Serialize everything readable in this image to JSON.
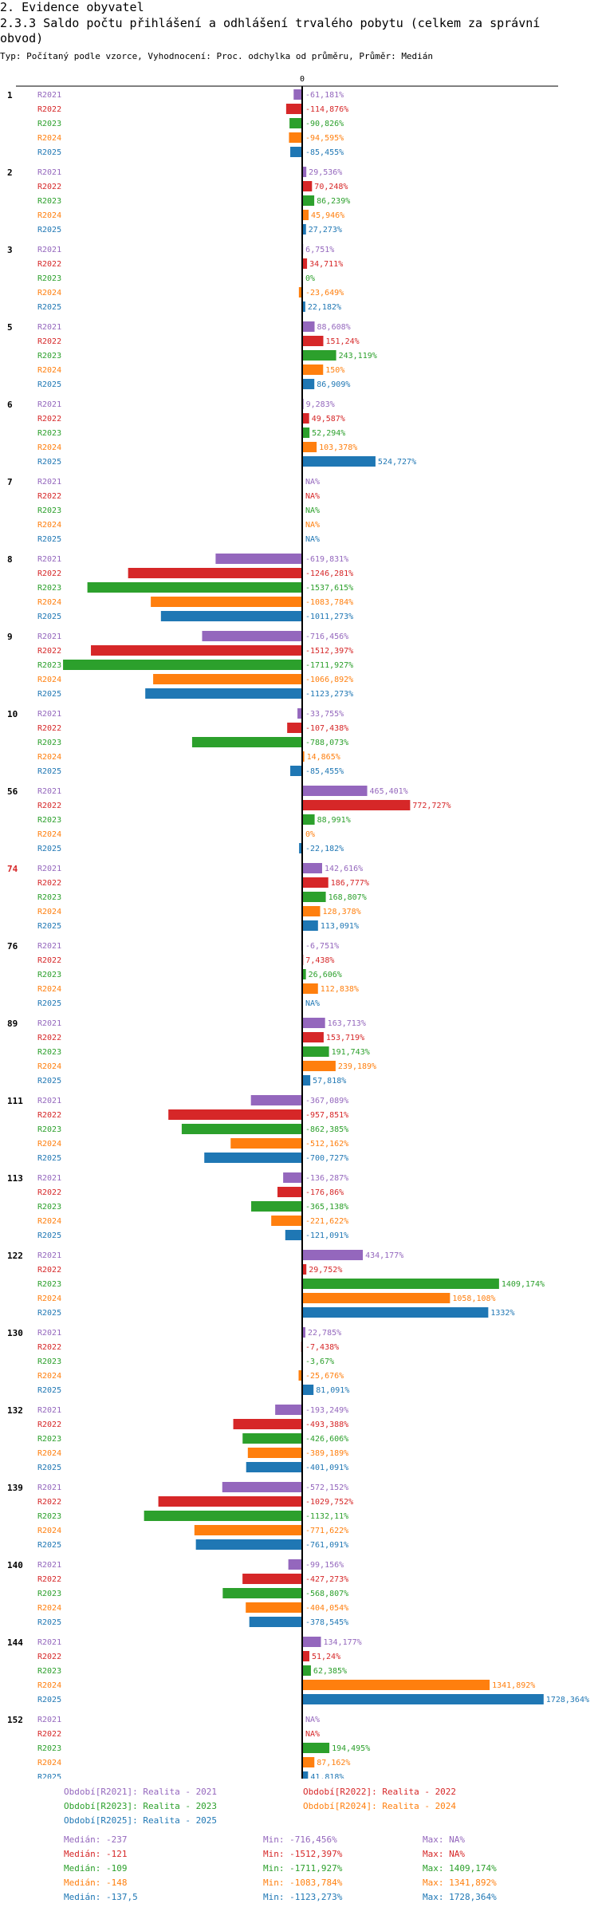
{
  "header": {
    "section": "2. Evidence obyvatel",
    "title": "2.3.3 Saldo počtu přihlášení a odhlášení trvalého pobytu (celkem za správní obvod)",
    "subtitle": "Typ: Počítaný podle vzorce, Vyhodnocení: Proc. odchylka od průměru, Průměr: Medián"
  },
  "chart_data": {
    "type": "bar",
    "orientation": "horizontal",
    "zero_label": "0",
    "series": [
      {
        "name": "R2021",
        "color": "#9467bd"
      },
      {
        "name": "R2022",
        "color": "#d62728"
      },
      {
        "name": "R2023",
        "color": "#2ca02c"
      },
      {
        "name": "R2024",
        "color": "#ff7f0e"
      },
      {
        "name": "R2025",
        "color": "#1f77b4"
      }
    ],
    "groups": [
      {
        "id": "1",
        "highlight": false,
        "values": [
          -61.181,
          -114.876,
          -90.826,
          -94.595,
          -85.455
        ],
        "labels": [
          "-61,181%",
          "-114,876%",
          "-90,826%",
          "-94,595%",
          "-85,455%"
        ]
      },
      {
        "id": "2",
        "highlight": false,
        "values": [
          29.536,
          70.248,
          86.239,
          45.946,
          27.273
        ],
        "labels": [
          "29,536%",
          "70,248%",
          "86,239%",
          "45,946%",
          "27,273%"
        ]
      },
      {
        "id": "3",
        "highlight": false,
        "values": [
          6.751,
          34.711,
          0,
          -23.649,
          22.182
        ],
        "labels": [
          "6,751%",
          "34,711%",
          "0%",
          "-23,649%",
          "22,182%"
        ]
      },
      {
        "id": "5",
        "highlight": false,
        "values": [
          88.608,
          151.24,
          243.119,
          150,
          86.909
        ],
        "labels": [
          "88,608%",
          "151,24%",
          "243,119%",
          "150%",
          "86,909%"
        ]
      },
      {
        "id": "6",
        "highlight": false,
        "values": [
          9.283,
          49.587,
          52.294,
          103.378,
          524.727
        ],
        "labels": [
          "9,283%",
          "49,587%",
          "52,294%",
          "103,378%",
          "524,727%"
        ]
      },
      {
        "id": "7",
        "highlight": false,
        "values": [
          null,
          null,
          null,
          null,
          null
        ],
        "labels": [
          "NA%",
          "NA%",
          "NA%",
          "NA%",
          "NA%"
        ]
      },
      {
        "id": "8",
        "highlight": false,
        "values": [
          -619.831,
          -1246.281,
          -1537.615,
          -1083.784,
          -1011.273
        ],
        "labels": [
          "-619,831%",
          "-1246,281%",
          "-1537,615%",
          "-1083,784%",
          "-1011,273%"
        ]
      },
      {
        "id": "9",
        "highlight": false,
        "values": [
          -716.456,
          -1512.397,
          -1711.927,
          -1066.892,
          -1123.273
        ],
        "labels": [
          "-716,456%",
          "-1512,397%",
          "-1711,927%",
          "-1066,892%",
          "-1123,273%"
        ]
      },
      {
        "id": "10",
        "highlight": false,
        "values": [
          -33.755,
          -107.438,
          -788.073,
          14.865,
          -85.455
        ],
        "labels": [
          "-33,755%",
          "-107,438%",
          "-788,073%",
          "14,865%",
          "-85,455%"
        ]
      },
      {
        "id": "56",
        "highlight": false,
        "values": [
          465.401,
          772.727,
          88.991,
          0,
          -22.182
        ],
        "labels": [
          "465,401%",
          "772,727%",
          "88,991%",
          "0%",
          "-22,182%"
        ]
      },
      {
        "id": "74",
        "highlight": true,
        "values": [
          142.616,
          186.777,
          168.807,
          128.378,
          113.091
        ],
        "labels": [
          "142,616%",
          "186,777%",
          "168,807%",
          "128,378%",
          "113,091%"
        ]
      },
      {
        "id": "76",
        "highlight": false,
        "values": [
          -6.751,
          7.438,
          26.606,
          112.838,
          null
        ],
        "labels": [
          "-6,751%",
          "7,438%",
          "26,606%",
          "112,838%",
          "NA%"
        ]
      },
      {
        "id": "89",
        "highlight": false,
        "values": [
          163.713,
          153.719,
          191.743,
          239.189,
          57.818
        ],
        "labels": [
          "163,713%",
          "153,719%",
          "191,743%",
          "239,189%",
          "57,818%"
        ]
      },
      {
        "id": "111",
        "highlight": false,
        "values": [
          -367.089,
          -957.851,
          -862.385,
          -512.162,
          -700.727
        ],
        "labels": [
          "-367,089%",
          "-957,851%",
          "-862,385%",
          "-512,162%",
          "-700,727%"
        ]
      },
      {
        "id": "113",
        "highlight": false,
        "values": [
          -136.287,
          -176.86,
          -365.138,
          -221.622,
          -121.091
        ],
        "labels": [
          "-136,287%",
          "-176,86%",
          "-365,138%",
          "-221,622%",
          "-121,091%"
        ]
      },
      {
        "id": "122",
        "highlight": false,
        "values": [
          434.177,
          29.752,
          1409.174,
          1058.108,
          1332
        ],
        "labels": [
          "434,177%",
          "29,752%",
          "1409,174%",
          "1058,108%",
          "1332%"
        ]
      },
      {
        "id": "130",
        "highlight": false,
        "values": [
          22.785,
          -7.438,
          -3.67,
          -25.676,
          81.091
        ],
        "labels": [
          "22,785%",
          "-7,438%",
          "-3,67%",
          "-25,676%",
          "81,091%"
        ]
      },
      {
        "id": "132",
        "highlight": false,
        "values": [
          -193.249,
          -493.388,
          -426.606,
          -389.189,
          -401.091
        ],
        "labels": [
          "-193,249%",
          "-493,388%",
          "-426,606%",
          "-389,189%",
          "-401,091%"
        ]
      },
      {
        "id": "139",
        "highlight": false,
        "values": [
          -572.152,
          -1029.752,
          -1132.11,
          -771.622,
          -761.091
        ],
        "labels": [
          "-572,152%",
          "-1029,752%",
          "-1132,11%",
          "-771,622%",
          "-761,091%"
        ]
      },
      {
        "id": "140",
        "highlight": false,
        "values": [
          -99.156,
          -427.273,
          -568.807,
          -404.054,
          -378.545
        ],
        "labels": [
          "-99,156%",
          "-427,273%",
          "-568,807%",
          "-404,054%",
          "-378,545%"
        ]
      },
      {
        "id": "144",
        "highlight": false,
        "values": [
          134.177,
          51.24,
          62.385,
          1341.892,
          1728.364
        ],
        "labels": [
          "134,177%",
          "51,24%",
          "62,385%",
          "1341,892%",
          "1728,364%"
        ]
      },
      {
        "id": "152",
        "highlight": false,
        "values": [
          null,
          null,
          194.495,
          87.162,
          41.818
        ],
        "labels": [
          "NA%",
          "NA%",
          "194,495%",
          "87,162%",
          "41,818%"
        ]
      }
    ]
  },
  "legend": {
    "periods": [
      "Období[R2021]: Realita - 2021",
      "Období[R2022]: Realita - 2022",
      "Období[R2023]: Realita - 2023",
      "Období[R2024]: Realita - 2024",
      "Období[R2025]: Realita - 2025"
    ],
    "stats": [
      {
        "median": "Medián: -237",
        "min": "Min: -716,456%",
        "max": "Max: NA%"
      },
      {
        "median": "Medián: -121",
        "min": "Min: -1512,397%",
        "max": "Max: NA%"
      },
      {
        "median": "Medián: -109",
        "min": "Min: -1711,927%",
        "max": "Max: 1409,174%"
      },
      {
        "median": "Medián: -148",
        "min": "Min: -1083,784%",
        "max": "Max: 1341,892%"
      },
      {
        "median": "Medián: -137,5",
        "min": "Min: -1123,273%",
        "max": "Max: 1728,364%"
      }
    ]
  }
}
